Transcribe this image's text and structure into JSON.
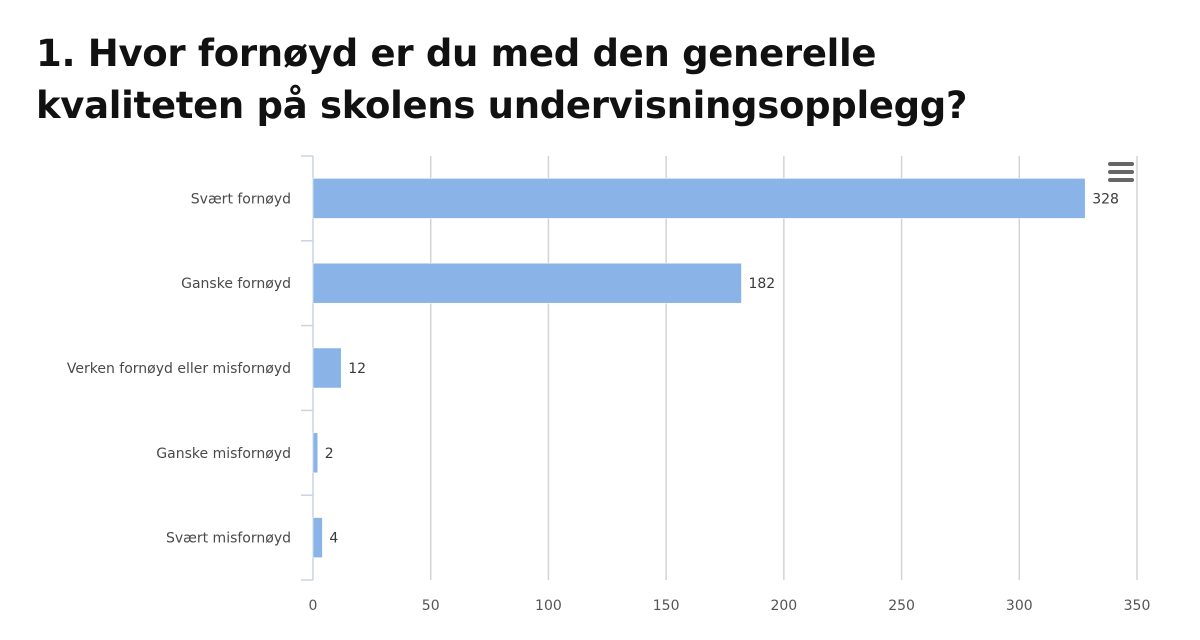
{
  "title": "1. Hvor fornøyd er du med den generelle kvaliteten på skolens undervisningsopplegg?",
  "menu_icon": "hamburger-menu-icon",
  "chart_data": {
    "type": "bar",
    "orientation": "horizontal",
    "categories": [
      "Svært fornøyd",
      "Ganske fornøyd",
      "Verken fornøyd eller misfornøyd",
      "Ganske misfornøyd",
      "Svært misfornøyd"
    ],
    "values": [
      328,
      182,
      12,
      2,
      4
    ],
    "xlim": [
      0,
      350
    ],
    "xticks": [
      0,
      50,
      100,
      150,
      200,
      250,
      300,
      350
    ],
    "grid": "vertical",
    "bar_color": "#8ab4e8",
    "data_labels": true,
    "legend": "none"
  }
}
